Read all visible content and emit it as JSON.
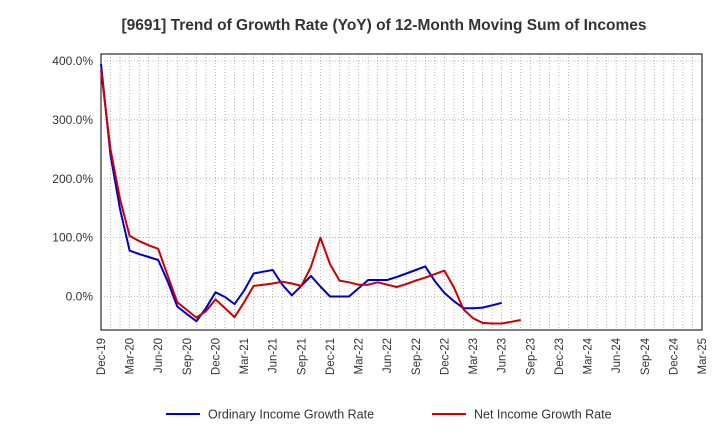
{
  "chart_data": {
    "type": "line",
    "title": "[9691]  Trend of Growth Rate (YoY) of 12-Month Moving Sum of Incomes",
    "xlabel": "",
    "ylabel": "",
    "ylim": [
      -57,
      412
    ],
    "yticks": [
      0,
      100,
      200,
      300,
      400
    ],
    "ytick_labels": [
      "0.0%",
      "100.0%",
      "200.0%",
      "300.0%",
      "400.0%"
    ],
    "x_labels": [
      "Dec-19",
      "Mar-20",
      "Jun-20",
      "Sep-20",
      "Dec-20",
      "Mar-21",
      "Jun-21",
      "Sep-21",
      "Dec-21",
      "Mar-22",
      "Jun-22",
      "Sep-22",
      "Dec-22",
      "Mar-23",
      "Jun-23",
      "Sep-23",
      "Dec-23",
      "Mar-24",
      "Jun-24",
      "Sep-24",
      "Dec-24",
      "Mar-25"
    ],
    "grid": true,
    "legend_position": "bottom",
    "series": [
      {
        "name": "Ordinary Income Growth Rate",
        "color": "#0000cc",
        "values": [
          395,
          240,
          148,
          78,
          72,
          67,
          62,
          25,
          -17,
          -30,
          -42,
          -20,
          7,
          -1,
          -13,
          10,
          39,
          42,
          45,
          20,
          2,
          18,
          35,
          17,
          0,
          0,
          0,
          14,
          28,
          28,
          28,
          33,
          39,
          45,
          51,
          26,
          6,
          -8,
          -20,
          -20,
          -19,
          -15,
          -11
        ]
      },
      {
        "name": "Net Income Growth Rate",
        "color": "#cc0000",
        "values": [
          385,
          250,
          165,
          103,
          94,
          87,
          81,
          35,
          -10,
          -23,
          -36,
          -25,
          -5,
          -20,
          -35,
          -10,
          18,
          20,
          22,
          25,
          22,
          18,
          50,
          100,
          55,
          27,
          24,
          20,
          20,
          24,
          20,
          16,
          21,
          27,
          32,
          38,
          44,
          15,
          -22,
          -37,
          -45,
          -46,
          -46,
          -43,
          -40
        ]
      }
    ]
  }
}
